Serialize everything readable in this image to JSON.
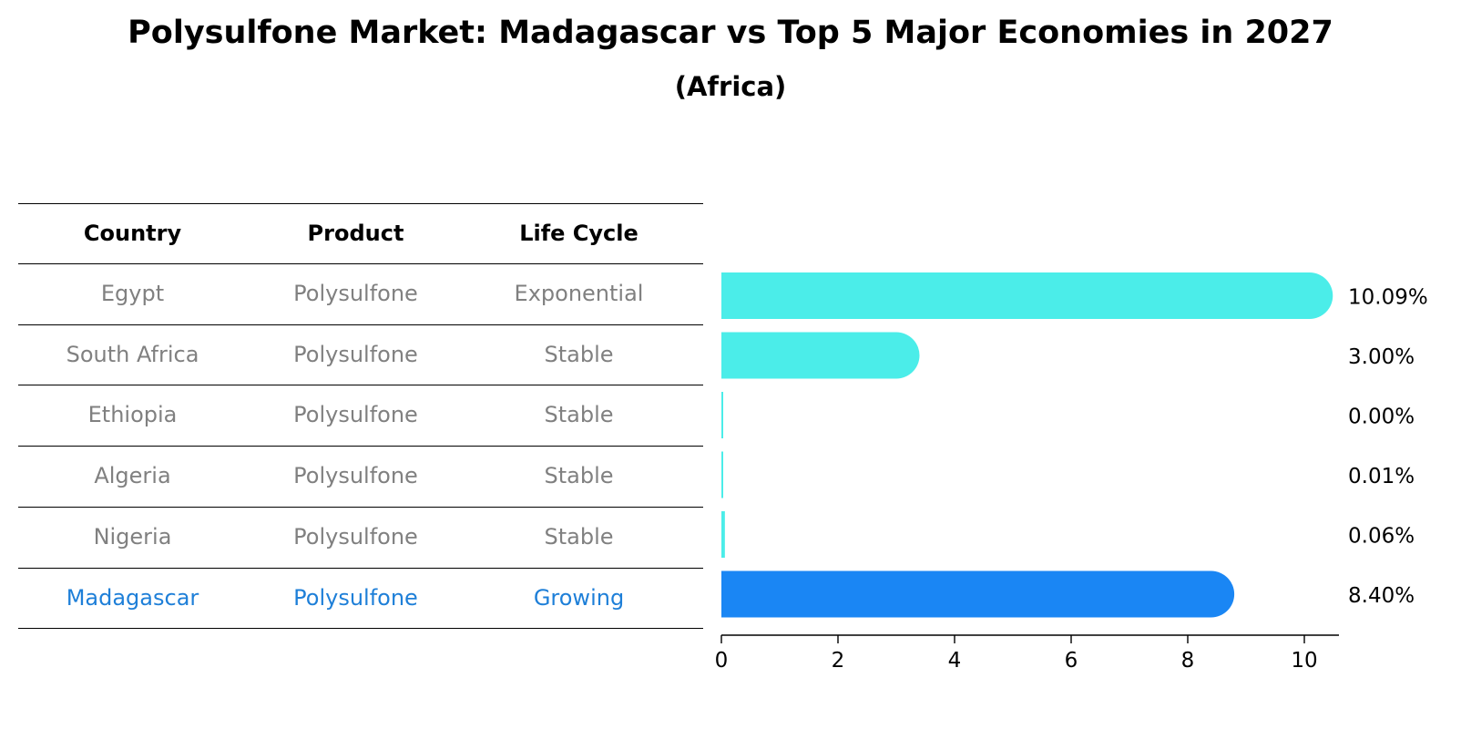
{
  "header": {
    "title": "Polysulfone Market: Madagascar vs Top 5 Major Economies in 2027",
    "subtitle": "(Africa)"
  },
  "table": {
    "columns": [
      "Country",
      "Product",
      "Life Cycle"
    ],
    "rows": [
      {
        "country": "Egypt",
        "product": "Polysulfone",
        "life_cycle": "Exponential"
      },
      {
        "country": "South Africa",
        "product": "Polysulfone",
        "life_cycle": "Stable"
      },
      {
        "country": "Ethiopia",
        "product": "Polysulfone",
        "life_cycle": "Stable"
      },
      {
        "country": "Algeria",
        "product": "Polysulfone",
        "life_cycle": "Stable"
      },
      {
        "country": "Nigeria",
        "product": "Polysulfone",
        "life_cycle": "Stable"
      },
      {
        "country": "Madagascar",
        "product": "Polysulfone",
        "life_cycle": "Growing",
        "highlight": true
      }
    ]
  },
  "chart_data": {
    "type": "bar",
    "orientation": "horizontal",
    "categories": [
      "Egypt",
      "South Africa",
      "Ethiopia",
      "Algeria",
      "Nigeria",
      "Madagascar"
    ],
    "values": [
      10.09,
      3.0,
      0.0,
      0.01,
      0.06,
      8.4
    ],
    "value_labels": [
      "10.09%",
      "3.00%",
      "0.00%",
      "0.01%",
      "0.06%",
      "8.40%"
    ],
    "xlim": [
      0,
      10.6
    ],
    "xticks": [
      0,
      2,
      4,
      6,
      8,
      10
    ],
    "grid": false,
    "colors": {
      "default": "#4bede9",
      "highlight": "#1a86f4",
      "table_text": "#808080",
      "table_highlight_text": "#1e7fd8"
    }
  }
}
